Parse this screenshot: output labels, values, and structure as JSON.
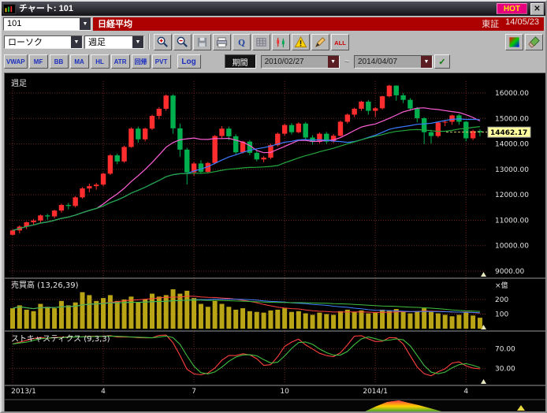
{
  "window": {
    "title": "チャート: 101",
    "hot": "HOT",
    "close": "✕"
  },
  "symbol": {
    "code": "101",
    "name": "日経平均",
    "exchange": "東証",
    "date": "14/05/23"
  },
  "toolbar": {
    "chart_type": "ローソク",
    "timeframe": "週足",
    "icons": [
      "zoom-in-icon",
      "zoom-out-icon",
      "save-icon",
      "print-icon",
      "quote-icon",
      "grid-icon",
      "candles-icon",
      "alert-icon",
      "draw-icon",
      "all-icon"
    ],
    "right_icons": [
      "palette-icon",
      "brush-icon"
    ]
  },
  "indicator_bar": {
    "buttons": [
      "VWAP",
      "MF",
      "BB",
      "MA",
      "HL",
      "ATR",
      "回帰",
      "PVT"
    ],
    "log": "Log",
    "period": "期間",
    "date_from": "2010/02/27",
    "tilde": "~",
    "date_to": "2014/04/07",
    "apply": "✓"
  },
  "chart": {
    "frame_label": "週足",
    "current_price": "14462.17",
    "price_axis": [
      "16000.00",
      "15000.00",
      "14000.00",
      "13000.00",
      "12000.00",
      "11000.00",
      "10000.00",
      "9000.00"
    ],
    "volume_label": "売買高 (13,26,39)",
    "volume_unit": "×億",
    "volume_axis": [
      "200",
      "100"
    ],
    "stoch_label": "ストキャスティクス (9,3,3)",
    "stoch_axis": [
      "70.00",
      "30.00"
    ],
    "x_axis": [
      {
        "i": 0,
        "t": "2013/1"
      },
      {
        "i": 13,
        "t": "4"
      },
      {
        "i": 26,
        "t": "7"
      },
      {
        "i": 39,
        "t": "10"
      },
      {
        "i": 52,
        "t": "2014/1"
      },
      {
        "i": 65,
        "t": "4"
      }
    ]
  },
  "chart_data": {
    "type": "candlestick",
    "timeframe": "weekly",
    "title": "日経平均 週足",
    "ylim": [
      9000,
      16400
    ],
    "ma_periods": [
      13,
      26,
      39
    ],
    "stochastic_params": [
      9,
      3,
      3
    ],
    "volume_unit": "億",
    "last_price": 14462.17,
    "candles_ohlc": [
      [
        10430,
        10650,
        10400,
        10600
      ],
      [
        10600,
        10800,
        10480,
        10750
      ],
      [
        10750,
        10950,
        10650,
        10920
      ],
      [
        10920,
        11050,
        10830,
        10990
      ],
      [
        10990,
        11230,
        10900,
        11190
      ],
      [
        11190,
        11250,
        11020,
        11150
      ],
      [
        11150,
        11410,
        11080,
        11380
      ],
      [
        11380,
        11650,
        11300,
        11600
      ],
      [
        11600,
        11680,
        11430,
        11560
      ],
      [
        11560,
        11950,
        11500,
        11900
      ],
      [
        11900,
        12300,
        11850,
        12250
      ],
      [
        12250,
        12440,
        12100,
        12340
      ],
      [
        12340,
        12470,
        12200,
        12400
      ],
      [
        12400,
        12870,
        12330,
        12830
      ],
      [
        12830,
        13600,
        12780,
        13550
      ],
      [
        13550,
        13620,
        13200,
        13310
      ],
      [
        13310,
        13930,
        13260,
        13880
      ],
      [
        13880,
        14650,
        13850,
        14600
      ],
      [
        14600,
        14680,
        14050,
        14180
      ],
      [
        14180,
        14640,
        14100,
        14600
      ],
      [
        14600,
        15150,
        14550,
        15100
      ],
      [
        15100,
        15450,
        14970,
        15380
      ],
      [
        15380,
        15940,
        15300,
        15900
      ],
      [
        15900,
        15950,
        14400,
        14612
      ],
      [
        14612,
        14800,
        13500,
        13775
      ],
      [
        13775,
        13850,
        12400,
        12880
      ],
      [
        12880,
        13290,
        12750,
        13230
      ],
      [
        13230,
        13360,
        12830,
        12900
      ],
      [
        12900,
        13290,
        12860,
        13250
      ],
      [
        13250,
        14350,
        13200,
        14310
      ],
      [
        14310,
        14700,
        14200,
        14600
      ],
      [
        14600,
        14680,
        14150,
        14300
      ],
      [
        14300,
        14380,
        13600,
        13670
      ],
      [
        13670,
        14120,
        13620,
        14090
      ],
      [
        14090,
        14150,
        13560,
        13650
      ],
      [
        13650,
        13720,
        13320,
        13390
      ],
      [
        13390,
        13520,
        13280,
        13460
      ],
      [
        13460,
        14000,
        13400,
        13950
      ],
      [
        13950,
        14450,
        13900,
        14400
      ],
      [
        14400,
        14800,
        14330,
        14740
      ],
      [
        14740,
        14820,
        14370,
        14460
      ],
      [
        14460,
        14850,
        14420,
        14800
      ],
      [
        14800,
        14860,
        14180,
        14250
      ],
      [
        14250,
        14340,
        13970,
        14080
      ],
      [
        14080,
        14450,
        14020,
        14400
      ],
      [
        14400,
        14470,
        14000,
        14090
      ],
      [
        14090,
        14390,
        14040,
        14320
      ],
      [
        14320,
        14920,
        14290,
        14870
      ],
      [
        14870,
        15200,
        14800,
        15150
      ],
      [
        15150,
        15420,
        15050,
        15380
      ],
      [
        15380,
        15700,
        15300,
        15660
      ],
      [
        15660,
        15720,
        15150,
        15300
      ],
      [
        15300,
        15450,
        15060,
        15400
      ],
      [
        15400,
        15890,
        15350,
        15870
      ],
      [
        15870,
        16320,
        15830,
        16290
      ],
      [
        16290,
        16300,
        15700,
        15910
      ],
      [
        15910,
        16000,
        15600,
        15730
      ],
      [
        15730,
        15800,
        15300,
        15390
      ],
      [
        15390,
        15450,
        14850,
        15010
      ],
      [
        15010,
        15050,
        13995,
        14460
      ],
      [
        14460,
        14560,
        14010,
        14310
      ],
      [
        14310,
        14870,
        14250,
        14840
      ],
      [
        14840,
        14950,
        14700,
        14870
      ],
      [
        14870,
        15150,
        14750,
        15120
      ],
      [
        15120,
        15180,
        14750,
        14870
      ],
      [
        14870,
        14900,
        14100,
        14220
      ],
      [
        14220,
        14560,
        14150,
        14510
      ],
      [
        14510,
        14580,
        14300,
        14462
      ]
    ],
    "volumes": [
      140,
      160,
      130,
      120,
      170,
      150,
      140,
      190,
      160,
      180,
      250,
      230,
      190,
      210,
      230,
      190,
      200,
      220,
      180,
      200,
      240,
      220,
      230,
      270,
      240,
      260,
      210,
      170,
      150,
      190,
      170,
      150,
      130,
      140,
      120,
      115,
      110,
      125,
      130,
      140,
      115,
      120,
      105,
      95,
      110,
      100,
      95,
      120,
      130,
      115,
      125,
      105,
      110,
      130,
      125,
      135,
      115,
      105,
      120,
      140,
      115,
      105,
      95,
      85,
      95,
      115,
      90,
      75
    ],
    "colors": {
      "up": "#ff2d2d",
      "down": "#00b04e",
      "ma13": "#ff5fd7",
      "ma26": "#3b7bff",
      "ma39": "#22a83e",
      "volume_bar": "#b8a414",
      "grid": "#6e2424",
      "background": "#000000",
      "tag_bg": "#ffff9e"
    }
  }
}
